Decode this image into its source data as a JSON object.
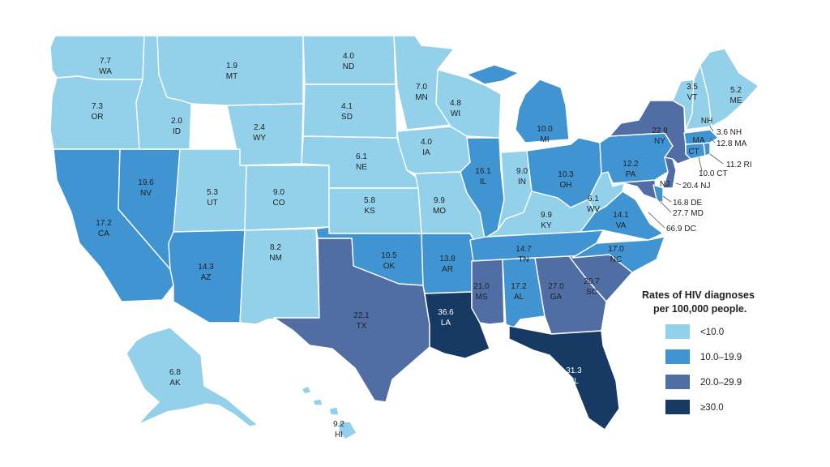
{
  "colors": {
    "lt10": "#93d0ea",
    "10to19": "#4194d2",
    "20to29": "#506ea3",
    "gte30": "#173a64",
    "border": "#ffffff"
  },
  "legend": {
    "title_line1": "Rates of HIV diagnoses",
    "title_line2": "per 100,000 people.",
    "items": [
      {
        "label": "<10.0",
        "bin": "lt10"
      },
      {
        "label": "10.0–19.9",
        "bin": "10to19"
      },
      {
        "label": "20.0–29.9",
        "bin": "20to29"
      },
      {
        "label": "≥30.0",
        "bin": "gte30"
      }
    ]
  },
  "states": {
    "WA": {
      "rate": "7.7",
      "bin": "lt10"
    },
    "OR": {
      "rate": "7.3",
      "bin": "lt10"
    },
    "CA": {
      "rate": "17.2",
      "bin": "10to19"
    },
    "NV": {
      "rate": "19.6",
      "bin": "10to19"
    },
    "ID": {
      "rate": "2.0",
      "bin": "lt10"
    },
    "MT": {
      "rate": "1.9",
      "bin": "lt10"
    },
    "WY": {
      "rate": "2.4",
      "bin": "lt10"
    },
    "UT": {
      "rate": "5.3",
      "bin": "lt10"
    },
    "AZ": {
      "rate": "14.3",
      "bin": "10to19"
    },
    "CO": {
      "rate": "9.0",
      "bin": "lt10"
    },
    "NM": {
      "rate": "8.2",
      "bin": "lt10"
    },
    "ND": {
      "rate": "4.0",
      "bin": "lt10"
    },
    "SD": {
      "rate": "4.1",
      "bin": "lt10"
    },
    "NE": {
      "rate": "6.1",
      "bin": "lt10"
    },
    "KS": {
      "rate": "5.8",
      "bin": "lt10"
    },
    "OK": {
      "rate": "10.5",
      "bin": "10to19"
    },
    "TX": {
      "rate": "22.1",
      "bin": "20to29"
    },
    "MN": {
      "rate": "7.0",
      "bin": "lt10"
    },
    "IA": {
      "rate": "4.0",
      "bin": "lt10"
    },
    "MO": {
      "rate": "9.9",
      "bin": "lt10"
    },
    "AR": {
      "rate": "13.8",
      "bin": "10to19"
    },
    "LA": {
      "rate": "36.6",
      "bin": "gte30"
    },
    "WI": {
      "rate": "4.8",
      "bin": "lt10"
    },
    "IL": {
      "rate": "16.1",
      "bin": "10to19"
    },
    "MI": {
      "rate": "10.0",
      "bin": "10to19"
    },
    "IN": {
      "rate": "9.0",
      "bin": "lt10"
    },
    "OH": {
      "rate": "10.3",
      "bin": "10to19"
    },
    "KY": {
      "rate": "9.9",
      "bin": "lt10"
    },
    "TN": {
      "rate": "14.7",
      "bin": "10to19"
    },
    "MS": {
      "rate": "21.0",
      "bin": "20to29"
    },
    "AL": {
      "rate": "17.2",
      "bin": "10to19"
    },
    "GA": {
      "rate": "27.0",
      "bin": "20to29"
    },
    "FL": {
      "rate": "31.3",
      "bin": "gte30"
    },
    "SC": {
      "rate": "20.7",
      "bin": "20to29"
    },
    "NC": {
      "rate": "17.0",
      "bin": "10to19"
    },
    "VA": {
      "rate": "14.1",
      "bin": "10to19"
    },
    "WV": {
      "rate": "6.1",
      "bin": "lt10"
    },
    "MD": {
      "rate": "27.7",
      "bin": "20to29"
    },
    "DE": {
      "rate": "16.8",
      "bin": "10to19"
    },
    "DC": {
      "rate": "66.9",
      "bin": "gte30"
    },
    "PA": {
      "rate": "12.2",
      "bin": "10to19"
    },
    "NJ": {
      "rate": "20.4",
      "bin": "20to29"
    },
    "NY": {
      "rate": "22.8",
      "bin": "20to29"
    },
    "CT": {
      "rate": "10.0",
      "bin": "10to19"
    },
    "RI": {
      "rate": "11.2",
      "bin": "10to19"
    },
    "MA": {
      "rate": "12.8",
      "bin": "10to19"
    },
    "VT": {
      "rate": "3.5",
      "bin": "lt10"
    },
    "NH": {
      "rate": "3.6",
      "bin": "lt10"
    },
    "ME": {
      "rate": "5.2",
      "bin": "lt10"
    },
    "AK": {
      "rate": "6.8",
      "bin": "lt10"
    },
    "HI": {
      "rate": "9.2",
      "bin": "lt10"
    }
  },
  "callouts": {
    "NH": "3.6 NH",
    "MA": "12.8 MA",
    "RI": "11.2 RI",
    "CT": "10.0 CT",
    "NJ": "20.4 NJ",
    "DE": "16.8 DE",
    "MD": "27.7 MD",
    "DC": "66.9 DC"
  },
  "abbr_labels": {
    "NH": "NH",
    "MA": "MA",
    "CT": "CT",
    "NJ": "NJ"
  }
}
